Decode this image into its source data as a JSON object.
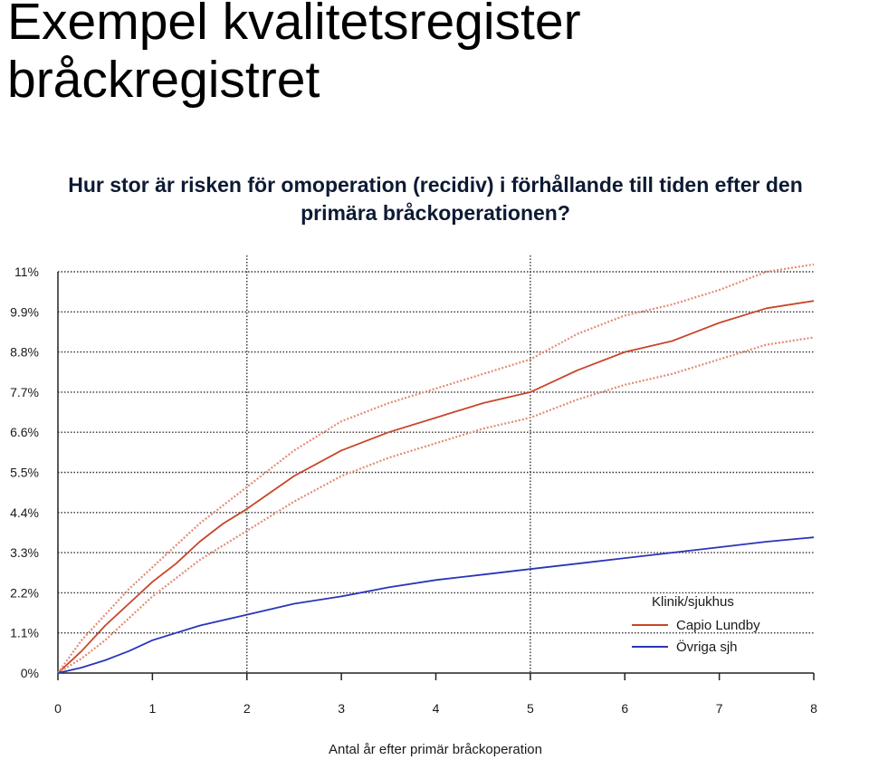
{
  "slide": {
    "title_line1": "Exempel kvalitetsregister",
    "title_line2": "bråckregistret"
  },
  "chart_data": {
    "type": "line",
    "title_line1": "Hur stor är risken för omoperation (recidiv) i förhållande till tiden efter den",
    "title_line2": "primära bråckoperationen?",
    "xlabel": "Antal år efter primär bråckoperation",
    "ylabel": "",
    "x_ticks": [
      0,
      1,
      2,
      3,
      4,
      5,
      6,
      7,
      8
    ],
    "y_ticks": [
      "0%",
      "1.1%",
      "2.2%",
      "3.3%",
      "4.4%",
      "5.5%",
      "6.6%",
      "7.7%",
      "8.8%",
      "9.9%",
      "11%"
    ],
    "xlim": [
      0,
      8
    ],
    "ylim": [
      0,
      11
    ],
    "grid": "horizontal dotted gridlines; vertical dotted lines at 2 and 5",
    "vlines": [
      2,
      5
    ],
    "legend": {
      "title": "Klinik/sjukhus",
      "position": "bottom-right"
    },
    "series": [
      {
        "name": "Capio Lundby",
        "color": "#c8462a",
        "style": "solid",
        "x": [
          0,
          0.25,
          0.5,
          0.75,
          1,
          1.25,
          1.5,
          1.75,
          2,
          2.5,
          3,
          3.5,
          4,
          4.5,
          5,
          5.5,
          6,
          6.5,
          7,
          7.5,
          8
        ],
        "y": [
          0,
          0.6,
          1.3,
          1.9,
          2.5,
          3.0,
          3.6,
          4.1,
          4.5,
          5.4,
          6.1,
          6.6,
          7.0,
          7.4,
          7.7,
          8.3,
          8.8,
          9.1,
          9.6,
          10.0,
          10.2
        ]
      },
      {
        "name": "Capio Lundby upper bound",
        "color": "#e38b76",
        "style": "dotted",
        "x": [
          0,
          0.25,
          0.5,
          0.75,
          1,
          1.25,
          1.5,
          1.75,
          2,
          2.5,
          3,
          3.5,
          4,
          4.5,
          5,
          5.5,
          6,
          6.5,
          7,
          7.5,
          8
        ],
        "y": [
          0,
          0.9,
          1.6,
          2.3,
          2.9,
          3.5,
          4.1,
          4.6,
          5.1,
          6.1,
          6.9,
          7.4,
          7.8,
          8.2,
          8.6,
          9.3,
          9.8,
          10.1,
          10.5,
          11.0,
          11.2
        ]
      },
      {
        "name": "Capio Lundby lower bound",
        "color": "#e38b76",
        "style": "dotted",
        "x": [
          0,
          0.25,
          0.5,
          0.75,
          1,
          1.25,
          1.5,
          1.75,
          2,
          2.5,
          3,
          3.5,
          4,
          4.5,
          5,
          5.5,
          6,
          6.5,
          7,
          7.5,
          8
        ],
        "y": [
          0,
          0.4,
          0.9,
          1.5,
          2.1,
          2.6,
          3.1,
          3.5,
          3.9,
          4.7,
          5.4,
          5.9,
          6.3,
          6.7,
          7.0,
          7.5,
          7.9,
          8.2,
          8.6,
          9.0,
          9.2
        ]
      },
      {
        "name": "Övriga sjh",
        "color": "#2a35b8",
        "style": "solid",
        "x": [
          0,
          0.25,
          0.5,
          0.75,
          1,
          1.5,
          2,
          2.5,
          3,
          3.5,
          4,
          4.5,
          5,
          5.5,
          6,
          6.5,
          7,
          7.5,
          8
        ],
        "y": [
          0,
          0.15,
          0.35,
          0.6,
          0.9,
          1.3,
          1.6,
          1.9,
          2.1,
          2.35,
          2.55,
          2.7,
          2.85,
          3.0,
          3.15,
          3.3,
          3.45,
          3.6,
          3.72
        ]
      }
    ]
  }
}
